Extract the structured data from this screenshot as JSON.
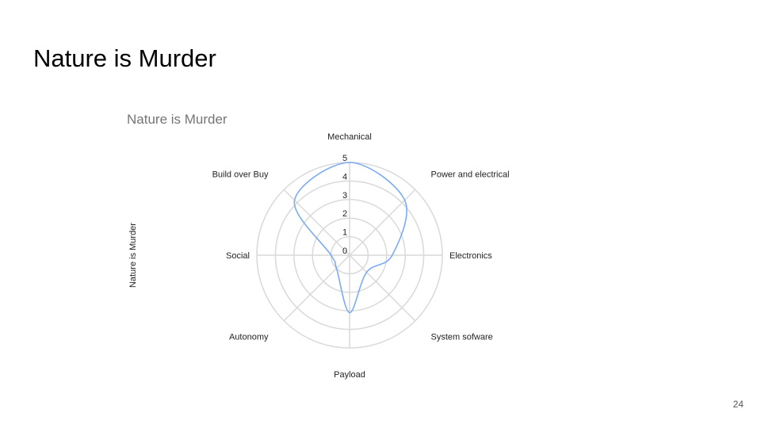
{
  "slide": {
    "title": "Nature is Murder",
    "page_number": "24"
  },
  "chart_data": {
    "type": "radar",
    "title": "Nature is Murder",
    "ylabel": "Nature is Murder",
    "categories": [
      "Mechanical",
      "Power and electrical",
      "Electronics",
      "System sofware",
      "Payload",
      "Autonomy",
      "Social",
      "Build over Buy"
    ],
    "tick_labels": [
      "0",
      "1",
      "2",
      "3",
      "4",
      "5"
    ],
    "rlim": [
      0,
      5
    ],
    "grid": true,
    "series": [
      {
        "values": [
          5,
          4.2,
          2.3,
          1.3,
          3.1,
          1.0,
          1.0,
          4.2
        ]
      }
    ],
    "colors": {
      "series": "#7baaf7",
      "grid": "#d9d9d9",
      "title": "#757575",
      "labels": "#222222"
    }
  }
}
